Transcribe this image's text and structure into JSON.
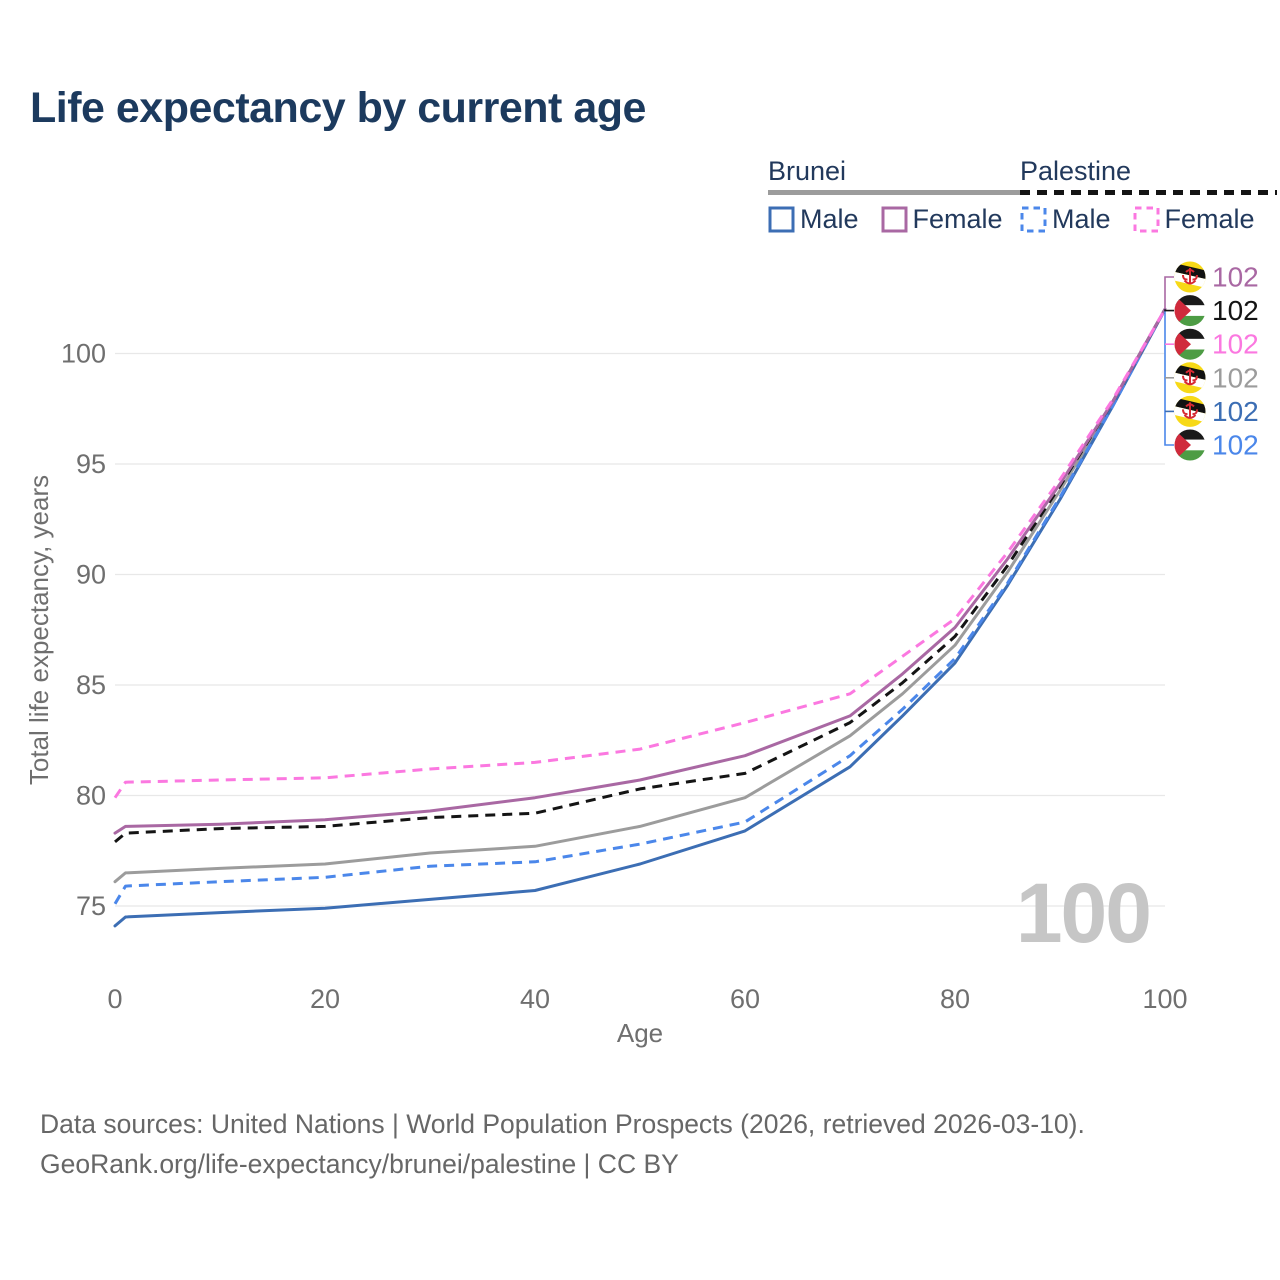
{
  "title": "Life expectancy by current age",
  "legend": {
    "groups": [
      {
        "name": "Brunei",
        "dash": "solid",
        "underline_color": "#9c9c9c",
        "items": [
          {
            "label": "Male",
            "series": "brunei_male"
          },
          {
            "label": "Female",
            "series": "brunei_female"
          }
        ]
      },
      {
        "name": "Palestine",
        "dash": "dashed",
        "underline_color": "#141414",
        "items": [
          {
            "label": "Male",
            "series": "palestine_male"
          },
          {
            "label": "Female",
            "series": "palestine_female"
          }
        ]
      }
    ]
  },
  "chart_data": {
    "type": "line",
    "title": "Life expectancy by current age",
    "xlabel": "Age",
    "ylabel": "Total life expectancy, years",
    "xlim": [
      0,
      100
    ],
    "ylim": [
      73.5,
      103
    ],
    "xticks": [
      0,
      20,
      40,
      60,
      80,
      100
    ],
    "yticks": [
      75,
      80,
      85,
      90,
      95,
      100
    ],
    "grid": "horizontal-only",
    "legend_position": "top-right",
    "hover_age_watermark": "100",
    "ages": [
      0,
      1,
      10,
      20,
      30,
      40,
      50,
      60,
      70,
      75,
      80,
      85,
      90,
      95,
      100
    ],
    "series": [
      {
        "id": "brunei_total",
        "name": "Brunei (both sexes)",
        "country": "Brunei",
        "color": "#9c9c9c",
        "dash": "solid",
        "values": [
          76.1,
          76.5,
          76.7,
          76.9,
          77.4,
          77.7,
          78.6,
          79.9,
          82.7,
          84.6,
          86.8,
          90.1,
          93.8,
          97.7,
          102
        ]
      },
      {
        "id": "brunei_male",
        "name": "Brunei Male",
        "country": "Brunei",
        "color": "#3c6eb4",
        "dash": "solid",
        "values": [
          74.1,
          74.5,
          74.7,
          74.9,
          75.3,
          75.7,
          76.9,
          78.4,
          81.3,
          83.6,
          86.0,
          89.5,
          93.4,
          97.6,
          102
        ]
      },
      {
        "id": "palestine_male",
        "name": "Palestine Male",
        "country": "Palestine",
        "color": "#4b87ea",
        "dash": "dashed",
        "values": [
          75.1,
          75.9,
          76.1,
          76.3,
          76.8,
          77.0,
          77.8,
          78.8,
          81.8,
          83.9,
          86.2,
          89.6,
          93.5,
          97.6,
          102
        ]
      },
      {
        "id": "palestine_total",
        "name": "Palestine (both sexes)",
        "country": "Palestine",
        "color": "#141414",
        "dash": "dashed",
        "values": [
          77.9,
          78.3,
          78.5,
          78.6,
          79.0,
          79.2,
          80.3,
          81.0,
          83.3,
          85.1,
          87.2,
          90.4,
          94.0,
          97.8,
          102
        ]
      },
      {
        "id": "brunei_female",
        "name": "Brunei Female",
        "country": "Brunei",
        "color": "#a968a3",
        "dash": "solid",
        "values": [
          78.3,
          78.6,
          78.7,
          78.9,
          79.3,
          79.9,
          80.7,
          81.8,
          83.6,
          85.5,
          87.6,
          90.7,
          94.1,
          97.8,
          102
        ]
      },
      {
        "id": "palestine_female",
        "name": "Palestine Female",
        "country": "Palestine",
        "color": "#fb78e0",
        "dash": "dashed",
        "values": [
          79.9,
          80.6,
          80.7,
          80.8,
          81.2,
          81.5,
          82.1,
          83.3,
          84.6,
          86.3,
          88.0,
          91.0,
          94.3,
          97.9,
          102
        ]
      }
    ],
    "end_labels": [
      {
        "flag": "brunei",
        "value": "102",
        "series": "brunei_female"
      },
      {
        "flag": "palestine",
        "value": "102",
        "series": "palestine_total"
      },
      {
        "flag": "palestine",
        "value": "102",
        "series": "palestine_female"
      },
      {
        "flag": "brunei",
        "value": "102",
        "series": "brunei_total"
      },
      {
        "flag": "brunei",
        "value": "102",
        "series": "brunei_male"
      },
      {
        "flag": "palestine",
        "value": "102",
        "series": "palestine_male"
      }
    ]
  },
  "footer": {
    "line1": "Data sources: United Nations | World Population Prospects (2026, retrieved 2026-03-10).",
    "line2": "GeoRank.org/life-expectancy/brunei/palestine | CC BY"
  }
}
